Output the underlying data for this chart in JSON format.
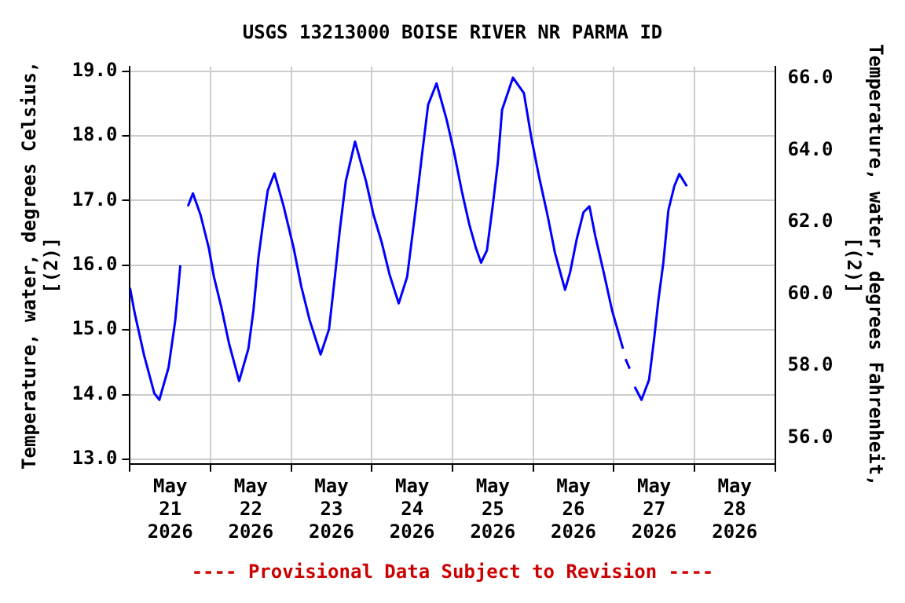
{
  "chart_data": {
    "type": "line",
    "title": "USGS 13213000 BOISE RIVER NR PARMA ID",
    "ylabel": "Temperature, water, degrees Celsius, [(2)]",
    "y2label": "Temperature, water, degrees Fahrenheit, [(2)]",
    "annotations": [
      "---- Provisional Data Subject to Revision ----"
    ],
    "x": [
      "2026-05-21T00:00",
      "2026-05-21T01:30",
      "2026-05-21T04:15",
      "2026-05-21T07:15",
      "2026-05-21T08:45",
      "2026-05-21T11:30",
      "2026-05-21T13:30",
      "2026-05-21T15:00",
      "2026-05-21T16:00",
      "2026-05-21T17:15",
      "2026-05-21T18:45",
      "2026-05-21T21:00",
      "2026-05-21T23:30",
      "2026-05-22T01:00",
      "2026-05-22T03:15",
      "2026-05-22T05:30",
      "2026-05-22T08:30",
      "2026-05-22T11:15",
      "2026-05-22T12:45",
      "2026-05-22T14:15",
      "2026-05-22T15:45",
      "2026-05-22T17:00",
      "2026-05-22T19:00",
      "2026-05-22T21:45",
      "2026-05-23T00:45",
      "2026-05-23T03:00",
      "2026-05-23T05:30",
      "2026-05-23T08:45",
      "2026-05-23T11:15",
      "2026-05-23T13:00",
      "2026-05-23T14:30",
      "2026-05-23T16:15",
      "2026-05-23T19:00",
      "2026-05-23T22:15",
      "2026-05-24T00:30",
      "2026-05-24T03:00",
      "2026-05-24T05:15",
      "2026-05-24T08:00",
      "2026-05-24T10:30",
      "2026-05-24T13:00",
      "2026-05-24T15:00",
      "2026-05-24T16:45",
      "2026-05-24T19:15",
      "2026-05-24T22:15",
      "2026-05-25T00:30",
      "2026-05-25T02:45",
      "2026-05-25T05:00",
      "2026-05-25T07:00",
      "2026-05-25T08:30",
      "2026-05-25T10:15",
      "2026-05-25T12:00",
      "2026-05-25T13:30",
      "2026-05-25T14:45",
      "2026-05-25T18:00",
      "2026-05-25T21:15",
      "2026-05-25T23:30",
      "2026-05-26T01:45",
      "2026-05-26T04:15",
      "2026-05-26T06:30",
      "2026-05-26T09:30",
      "2026-05-26T11:00",
      "2026-05-26T13:00",
      "2026-05-26T15:00",
      "2026-05-26T16:45",
      "2026-05-26T18:30",
      "2026-05-26T21:00",
      "2026-05-26T23:30",
      "2026-05-27T02:45",
      "2026-05-27T03:15",
      "2026-05-27T03:30",
      "2026-05-27T04:45",
      "2026-05-27T05:30",
      "2026-05-27T06:15",
      "2026-05-27T08:15",
      "2026-05-27T10:30",
      "2026-05-27T12:00",
      "2026-05-27T13:15",
      "2026-05-27T14:45",
      "2026-05-27T16:15",
      "2026-05-27T18:00",
      "2026-05-27T19:30",
      "2026-05-27T21:45"
    ],
    "series": [
      {
        "color": "#0000ff",
        "values": [
          15.65,
          15.24,
          14.6,
          14.02,
          13.92,
          14.42,
          15.15,
          16.0,
          null,
          16.91,
          17.11,
          16.78,
          16.26,
          15.82,
          15.34,
          14.79,
          14.21,
          14.71,
          15.3,
          16.12,
          16.7,
          17.15,
          17.42,
          16.91,
          16.26,
          15.67,
          15.15,
          14.62,
          15.01,
          15.82,
          16.56,
          17.3,
          17.91,
          17.3,
          16.78,
          16.34,
          15.86,
          15.41,
          15.82,
          16.85,
          17.74,
          18.48,
          18.81,
          18.25,
          17.74,
          17.15,
          16.63,
          16.26,
          16.04,
          16.23,
          16.93,
          17.59,
          18.4,
          18.9,
          18.66,
          17.96,
          17.37,
          16.78,
          16.19,
          15.62,
          15.89,
          16.41,
          16.82,
          16.91,
          16.45,
          15.89,
          15.3,
          14.71,
          null,
          14.55,
          14.4,
          null,
          14.12,
          13.92,
          14.23,
          14.86,
          15.45,
          16.04,
          16.85,
          17.22,
          17.41,
          17.22
        ]
      }
    ],
    "xlim": [
      "2026-05-21T00:00",
      "2026-05-29T00:00"
    ],
    "xticks": [
      {
        "value": "2026-05-21T00:00",
        "label": null
      },
      {
        "value": "2026-05-21T12:00",
        "label": "May 21 2026"
      },
      {
        "value": "2026-05-22T00:00",
        "label": null
      },
      {
        "value": "2026-05-22T12:00",
        "label": "May 22 2026"
      },
      {
        "value": "2026-05-23T00:00",
        "label": null
      },
      {
        "value": "2026-05-23T12:00",
        "label": "May 23 2026"
      },
      {
        "value": "2026-05-24T00:00",
        "label": null
      },
      {
        "value": "2026-05-24T12:00",
        "label": "May 24 2026"
      },
      {
        "value": "2026-05-25T00:00",
        "label": null
      },
      {
        "value": "2026-05-25T12:00",
        "label": "May 25 2026"
      },
      {
        "value": "2026-05-26T00:00",
        "label": null
      },
      {
        "value": "2026-05-26T12:00",
        "label": "May 26 2026"
      },
      {
        "value": "2026-05-27T00:00",
        "label": null
      },
      {
        "value": "2026-05-27T12:00",
        "label": "May 27 2026"
      },
      {
        "value": "2026-05-28T00:00",
        "label": null
      },
      {
        "value": "2026-05-28T12:00",
        "label": "May 28 2026"
      },
      {
        "value": "2026-05-29T00:00",
        "label": null
      }
    ],
    "ylim": [
      12.93,
      19.07
    ],
    "yticks": [
      {
        "value": 13,
        "label": "13.0"
      },
      {
        "value": 14,
        "label": "14.0"
      },
      {
        "value": 15,
        "label": "15.0"
      },
      {
        "value": 16,
        "label": "16.0"
      },
      {
        "value": 17,
        "label": "17.0"
      },
      {
        "value": 18,
        "label": "18.0"
      },
      {
        "value": 19,
        "label": "19.0"
      }
    ],
    "y2lim": [
      55.27,
      66.33
    ],
    "y2ticks": [
      {
        "value": 56,
        "label": "56.0"
      },
      {
        "value": 58,
        "label": "58.0"
      },
      {
        "value": 60,
        "label": "60.0"
      },
      {
        "value": 62,
        "label": "62.0"
      },
      {
        "value": 64,
        "label": "64.0"
      },
      {
        "value": 66,
        "label": "66.0"
      }
    ],
    "grid": true,
    "legend": false,
    "marker": "none",
    "line_style": "solid"
  }
}
